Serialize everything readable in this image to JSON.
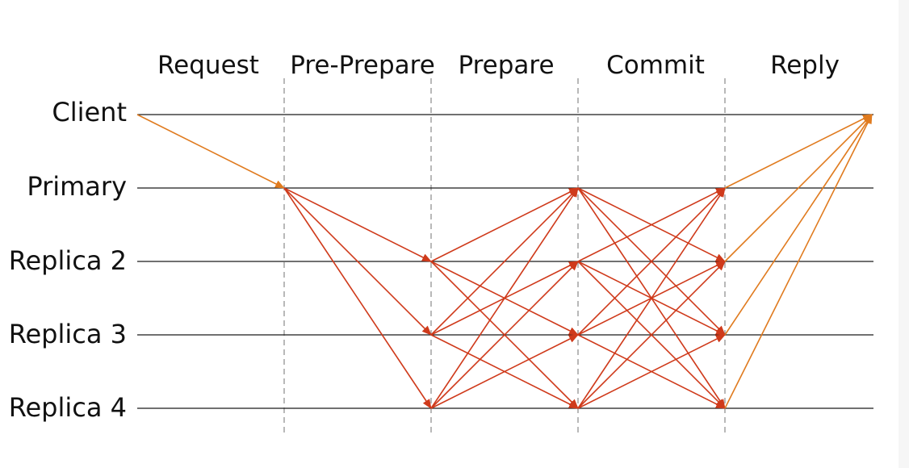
{
  "diagram": {
    "phases": [
      "Request",
      "Pre-Prepare",
      "Prepare",
      "Commit",
      "Reply"
    ],
    "nodes": [
      "Client",
      "Primary",
      "Replica 2",
      "Replica 3",
      "Replica 4"
    ],
    "colors": {
      "timeline": "#1a1a1a",
      "divider": "#8a8a8a",
      "client_message": "#e07b1f",
      "replica_message": "#cf3a1b"
    },
    "messages": [
      {
        "phase": "Request",
        "from": "Client",
        "to": [
          "Primary"
        ]
      },
      {
        "phase": "Pre-Prepare",
        "from": "Primary",
        "to": [
          "Replica 2",
          "Replica 3",
          "Replica 4"
        ]
      },
      {
        "phase": "Prepare",
        "from": "Replica 2",
        "to": [
          "Primary",
          "Replica 3",
          "Replica 4"
        ]
      },
      {
        "phase": "Prepare",
        "from": "Replica 3",
        "to": [
          "Primary",
          "Replica 2",
          "Replica 4"
        ]
      },
      {
        "phase": "Prepare",
        "from": "Replica 4",
        "to": [
          "Primary",
          "Replica 2",
          "Replica 3"
        ]
      },
      {
        "phase": "Commit",
        "from": "Primary",
        "to": [
          "Replica 2",
          "Replica 3",
          "Replica 4"
        ]
      },
      {
        "phase": "Commit",
        "from": "Replica 2",
        "to": [
          "Primary",
          "Replica 3",
          "Replica 4"
        ]
      },
      {
        "phase": "Commit",
        "from": "Replica 3",
        "to": [
          "Primary",
          "Replica 2",
          "Replica 4"
        ]
      },
      {
        "phase": "Commit",
        "from": "Replica 4",
        "to": [
          "Primary",
          "Replica 2",
          "Replica 3"
        ]
      },
      {
        "phase": "Reply",
        "from": "Primary",
        "to": [
          "Client"
        ]
      },
      {
        "phase": "Reply",
        "from": "Replica 2",
        "to": [
          "Client"
        ]
      },
      {
        "phase": "Reply",
        "from": "Replica 3",
        "to": [
          "Client"
        ]
      },
      {
        "phase": "Reply",
        "from": "Replica 4",
        "to": [
          "Client"
        ]
      }
    ]
  }
}
